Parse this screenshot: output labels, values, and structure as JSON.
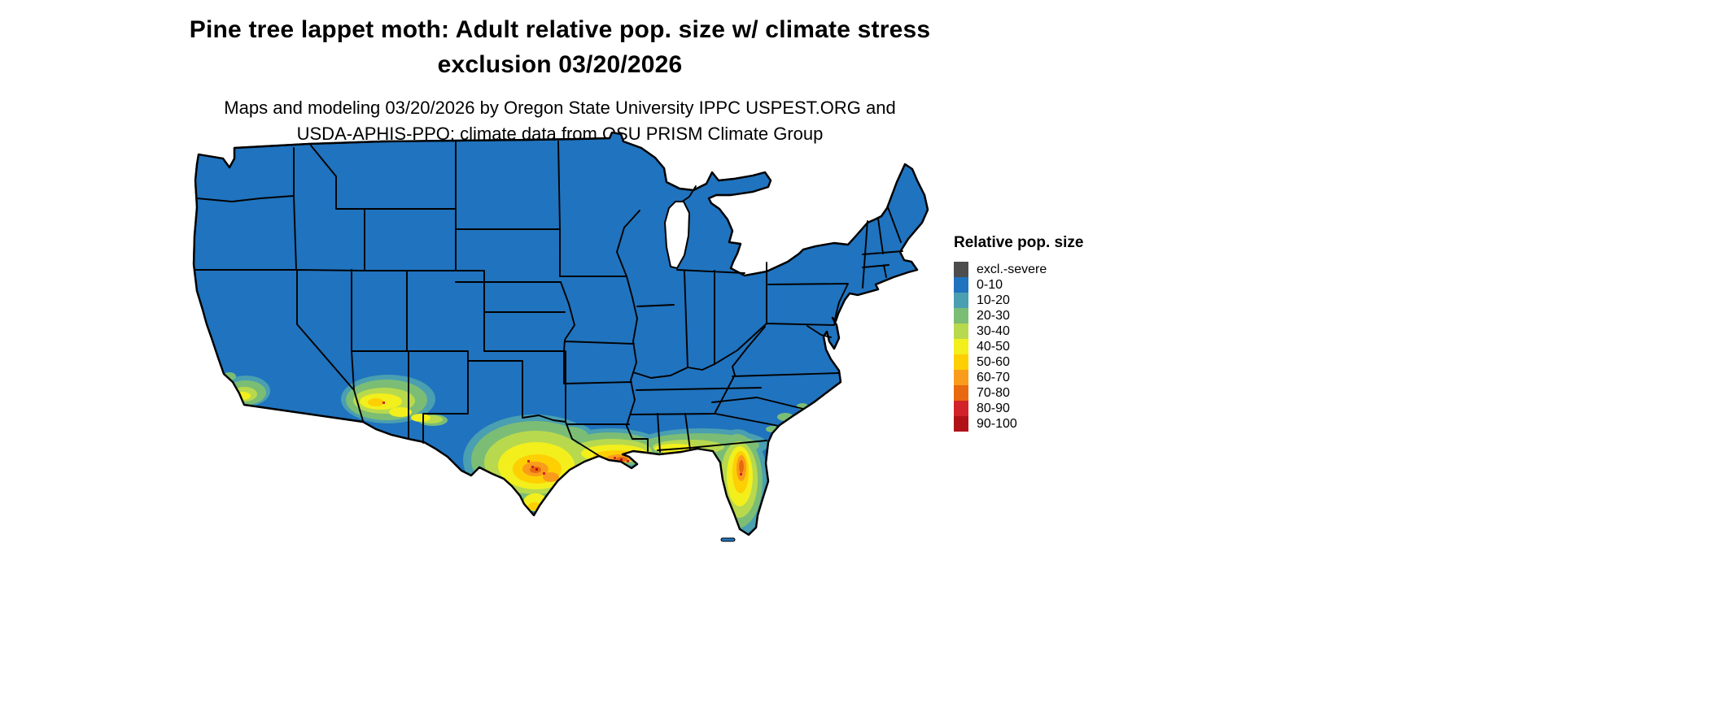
{
  "title": {
    "line1": "Pine tree lappet moth: Adult relative pop. size w/ climate stress",
    "line2": "exclusion 03/20/2026"
  },
  "subtitle": {
    "line1": "Maps and modeling 03/20/2026 by Oregon State University IPPC USPEST.ORG and",
    "line2": "USDA-APHIS-PPQ; climate data from OSU PRISM Climate Group"
  },
  "legend": {
    "title": "Relative pop. size",
    "items": [
      {
        "label": "excl.-severe",
        "color": "#4d4d4d"
      },
      {
        "label": "0-10",
        "color": "#2073be"
      },
      {
        "label": "10-20",
        "color": "#4a9fb0"
      },
      {
        "label": "20-30",
        "color": "#7cbd75"
      },
      {
        "label": "30-40",
        "color": "#b8d94e"
      },
      {
        "label": "40-50",
        "color": "#f2ef1d"
      },
      {
        "label": "50-60",
        "color": "#fecf02"
      },
      {
        "label": "60-70",
        "color": "#f99c1c"
      },
      {
        "label": "70-80",
        "color": "#e8690f"
      },
      {
        "label": "80-90",
        "color": "#d2232a"
      },
      {
        "label": "90-100",
        "color": "#b01218"
      }
    ]
  },
  "map": {
    "border_color": "#000000",
    "water_background_color": "#ffffff"
  }
}
